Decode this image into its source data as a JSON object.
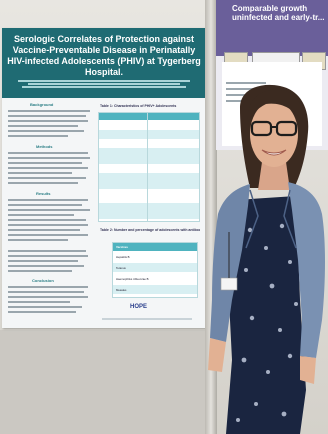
{
  "poster": {
    "title": "Serologic Correlates of Protection against Vaccine-Preventable Disease in Perinatally HIV-infected Adolescents (PHIV) at Tygerberg Hospital.",
    "sections": {
      "background": "Background",
      "methods": "Methods",
      "results": "Results",
      "conclusion": "Conclusion"
    },
    "table1_title": "Table 1: Characteristics of PHIV+ Adolescents",
    "table2_title": "Table 2: Number and percentage of adolescents with antibodies below the specified thresholds",
    "table2_header": "Vaccines",
    "table2_rows": [
      "Hepatitis B",
      "Tetanus",
      "Haemophilus influenzae B",
      "Measles"
    ],
    "logo": "HOPE"
  },
  "poster2": {
    "title": "Comparable growth uninfected and early-tr..."
  },
  "colors": {
    "poster_header": "#1f6b73",
    "table_header": "#4fb3bf",
    "poster2_band": "#6a5f9a"
  }
}
